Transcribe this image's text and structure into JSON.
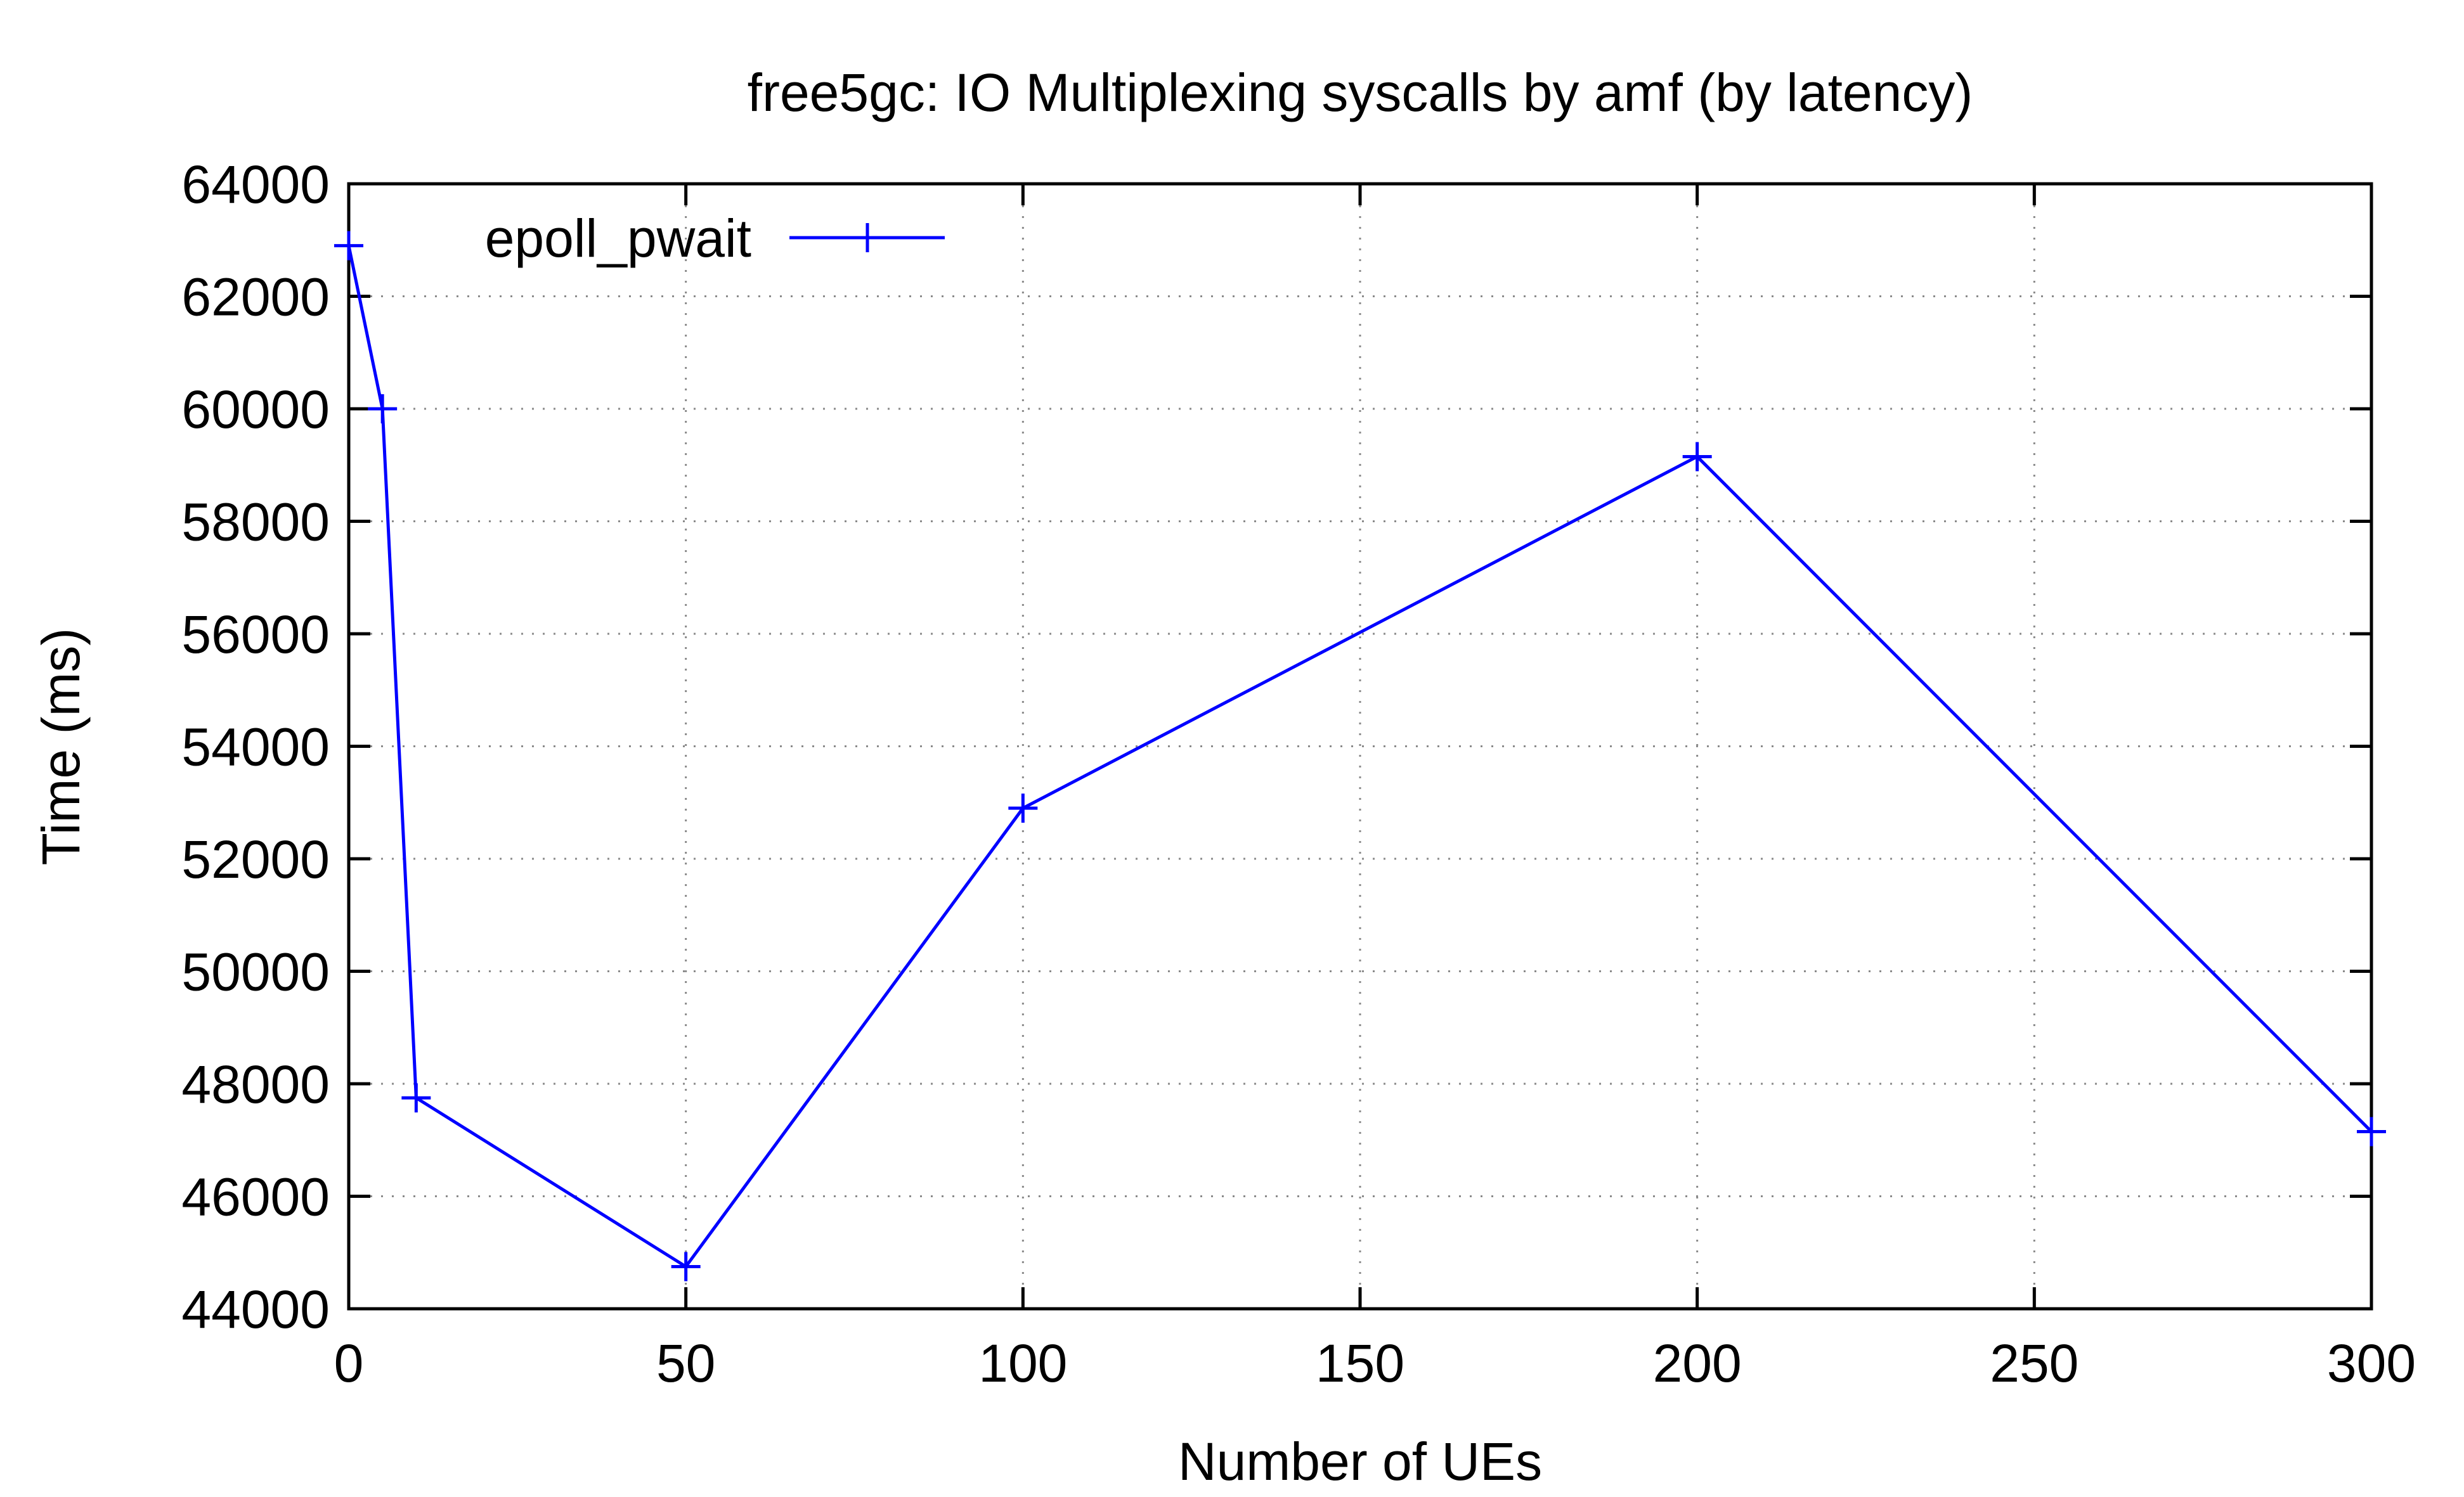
{
  "chart_data": {
    "type": "line",
    "title": "free5gc: IO Multiplexing syscalls by amf (by latency)",
    "xlabel": "Number of UEs",
    "ylabel": "Time (ms)",
    "xlim": [
      0,
      300
    ],
    "ylim": [
      44000,
      64000
    ],
    "xticks": [
      0,
      50,
      100,
      150,
      200,
      250,
      300
    ],
    "yticks": [
      44000,
      46000,
      48000,
      50000,
      52000,
      54000,
      56000,
      58000,
      60000,
      62000,
      64000
    ],
    "grid": true,
    "legend_position": "top-left",
    "series": [
      {
        "name": "epoll_pwait",
        "color": "#0000ff",
        "marker": "plus",
        "x": [
          0,
          5,
          10,
          50,
          100,
          200,
          300
        ],
        "y": [
          62900,
          60000,
          47750,
          44750,
          52900,
          59150,
          47150
        ]
      }
    ]
  }
}
